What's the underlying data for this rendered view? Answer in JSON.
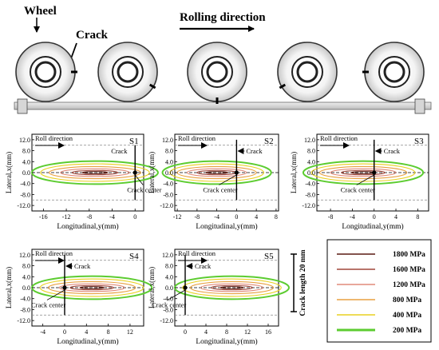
{
  "header": {
    "wheel_label": "Wheel",
    "crack_label": "Crack",
    "rolling_label": "Rolling direction"
  },
  "common": {
    "y_axis_label": "Lateral,x(mm)",
    "x_axis_label": "Longitudinal,y(mm)",
    "roll_label": "Roll direction",
    "crack_label": "Crack",
    "crack_center_label": "Crack center",
    "y_ticks": [
      "12.0",
      "8.0",
      "4.0",
      "0.0",
      "-4.0",
      "-8.0",
      "-12.0"
    ],
    "crack_length_label": "Crack length 20 mm"
  },
  "panels": [
    {
      "title": "S1",
      "x_ticks": [
        "-16",
        "-12",
        "-8",
        "-4",
        "0"
      ]
    },
    {
      "title": "S2",
      "x_ticks": [
        "-12",
        "-8",
        "-4",
        "0",
        "4",
        "8"
      ]
    },
    {
      "title": "S3",
      "x_ticks": [
        "-8",
        "-4",
        "0",
        "4",
        "8"
      ]
    },
    {
      "title": "S4",
      "x_ticks": [
        "-4",
        "0",
        "4",
        "8",
        "12"
      ]
    },
    {
      "title": "S5",
      "x_ticks": [
        "0",
        "4",
        "8",
        "12",
        "16"
      ]
    }
  ],
  "legend": {
    "items": [
      {
        "label": "1800 MPa",
        "color": "#5a1a12"
      },
      {
        "label": "1600 MPa",
        "color": "#a0463a"
      },
      {
        "label": "1200 MPa",
        "color": "#e08a7a"
      },
      {
        "label": "800 MPa",
        "color": "#e8a040"
      },
      {
        "label": "400 MPa",
        "color": "#e8d020"
      },
      {
        "label": "200 MPa",
        "color": "#5ccc30"
      }
    ]
  }
}
